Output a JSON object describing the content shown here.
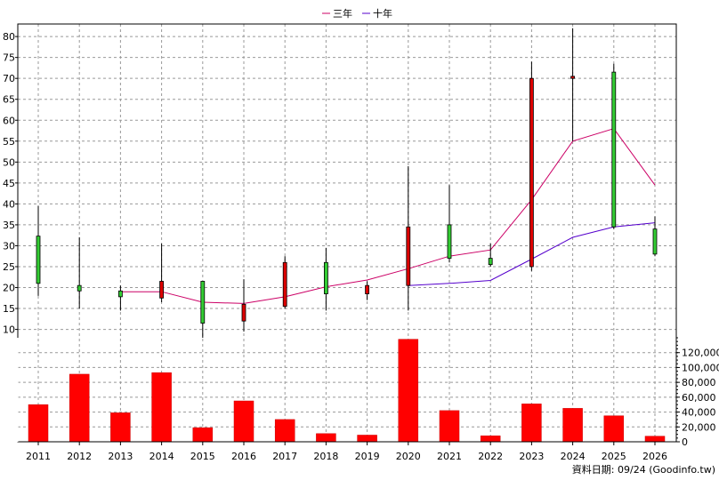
{
  "chart_data": {
    "type": "candlestick+line+bar",
    "categories": [
      "2011",
      "2012",
      "2013",
      "2014",
      "2015",
      "2016",
      "2017",
      "2018",
      "2019",
      "2020",
      "2021",
      "2022",
      "2023",
      "2024",
      "2025",
      "2026"
    ],
    "legend": [
      {
        "name": "三年",
        "color": "#cc0066"
      },
      {
        "name": "十年",
        "color": "#5500cc"
      }
    ],
    "legend_position": "top-center",
    "price_axis": {
      "ylim": [
        8,
        83
      ],
      "ticks": [
        10,
        15,
        20,
        25,
        30,
        35,
        40,
        45,
        50,
        55,
        60,
        65,
        70,
        75,
        80
      ],
      "side": "left"
    },
    "volume_axis": {
      "ylim": [
        0,
        140000
      ],
      "ticks": [
        0,
        20000,
        40000,
        60000,
        80000,
        100000,
        120000
      ],
      "tick_labels": [
        "0",
        "20,000",
        "40,000",
        "60,000",
        "80,000",
        "100,000",
        "120,000"
      ],
      "side": "right"
    },
    "grid": true,
    "candles": [
      {
        "open": 21,
        "close": 32.3,
        "high": 39.5,
        "low": 18
      },
      {
        "open": 19.2,
        "close": 20.5,
        "high": 32,
        "low": 15
      },
      {
        "open": 17.8,
        "close": 19.2,
        "high": 20.5,
        "low": 14.5
      },
      {
        "open": 21.5,
        "close": 17.5,
        "high": 30.5,
        "low": 16.5
      },
      {
        "open": 11.5,
        "close": 21.5,
        "high": 21.5,
        "low": 8
      },
      {
        "open": 16,
        "close": 12,
        "high": 22,
        "low": 9.5
      },
      {
        "open": 26,
        "close": 15.5,
        "high": 27.5,
        "low": 15
      },
      {
        "open": 18.5,
        "close": 26,
        "high": 29.5,
        "low": 14.5
      },
      {
        "open": 20.5,
        "close": 18.5,
        "high": 21.5,
        "low": 17
      },
      {
        "open": 34.5,
        "close": 20.5,
        "high": 49,
        "low": 14.5
      },
      {
        "open": 27,
        "close": 35,
        "high": 44.5,
        "low": 26
      },
      {
        "open": 25.5,
        "close": 27,
        "high": 30.5,
        "low": 25
      },
      {
        "open": 70,
        "close": 25,
        "high": 74,
        "low": 24
      },
      {
        "open": 70.5,
        "close": 70,
        "high": 82,
        "low": 55
      },
      {
        "open": 34.5,
        "close": 71.5,
        "high": 73.5,
        "low": 34
      },
      {
        "open": 28,
        "close": 34,
        "high": 37,
        "low": 27.5
      }
    ],
    "series": [
      {
        "name": "三年",
        "values": [
          null,
          null,
          19,
          19,
          16.5,
          16.2,
          17.8,
          20.2,
          21.8,
          24.5,
          27.5,
          29,
          41,
          55,
          58,
          44.5
        ]
      },
      {
        "name": "十年",
        "values": [
          null,
          null,
          null,
          null,
          null,
          null,
          null,
          null,
          null,
          20.5,
          21,
          21.7,
          26.8,
          32,
          34.5,
          35.5
        ]
      }
    ],
    "volume": [
      50000,
      91000,
      39000,
      93000,
      19000,
      55000,
      30000,
      11000,
      9000,
      138000,
      42000,
      8000,
      51000,
      45000,
      35000,
      7500
    ],
    "footer": "資料日期: 09/24  (Goodinfo.tw)"
  }
}
